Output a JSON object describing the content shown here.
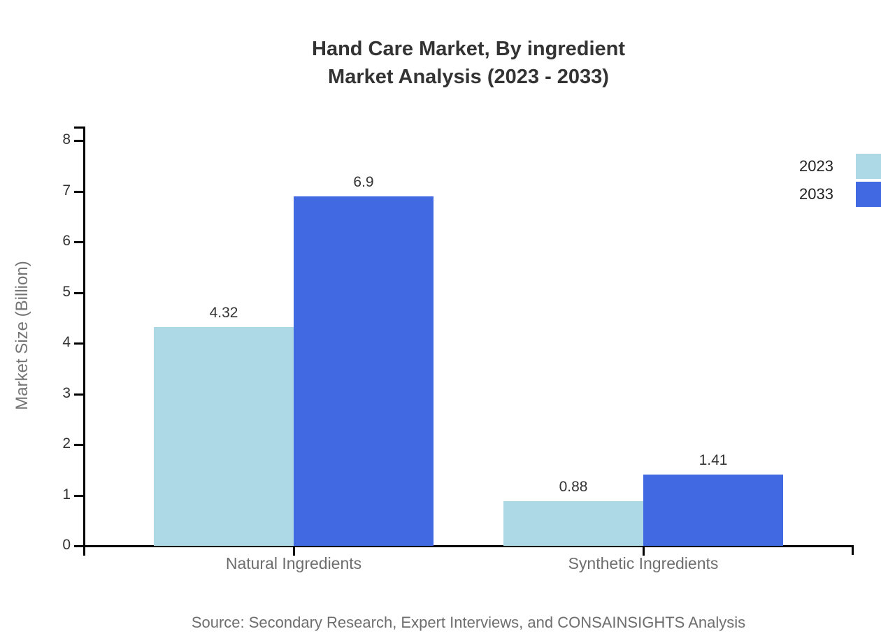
{
  "title": {
    "line1": "Hand Care Market, By ingredient",
    "line2": "Market Analysis (2023 - 2033)"
  },
  "source": "Source: Secondary Research, Expert Interviews, and CONSAINSIGHTS Analysis",
  "colors": {
    "series_2023": "#ADD8E6",
    "series_2033": "#4169E1",
    "axis": "#000000",
    "title_text": "#333333",
    "muted_text": "#6e6e6e"
  },
  "chart_data": {
    "type": "bar",
    "title": "Hand Care Market, By ingredient — Market Analysis (2023 - 2033)",
    "categories": [
      "Natural Ingredients",
      "Synthetic Ingredients"
    ],
    "series": [
      {
        "name": "2023",
        "color": "#ADD8E6",
        "values": [
          4.32,
          0.88
        ]
      },
      {
        "name": "2033",
        "color": "#4169E1",
        "values": [
          6.9,
          1.41
        ]
      }
    ],
    "data_labels": [
      [
        "4.32",
        "0.88"
      ],
      [
        "6.9",
        "1.41"
      ]
    ],
    "xlabel": "",
    "ylabel": "Market Size (Billion)",
    "ylim": [
      0,
      8
    ],
    "yticks": [
      0,
      1,
      2,
      3,
      4,
      5,
      6,
      7,
      8
    ],
    "grid": false,
    "legend_position": "top-right"
  }
}
